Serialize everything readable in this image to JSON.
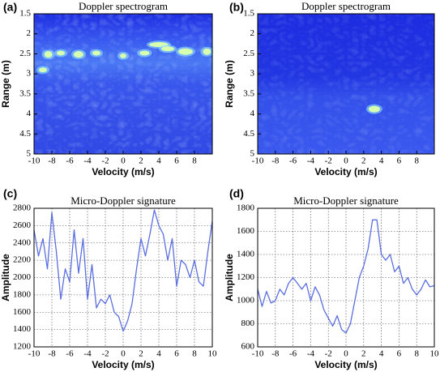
{
  "chart_data": [
    {
      "type": "spectrogram",
      "label": "(a)",
      "title": "Doppler spectrogram",
      "xlabel": "Velocity (m/s)",
      "ylabel": "Range (m)",
      "xlim": [
        -10,
        10
      ],
      "xticks": [
        -10,
        -8,
        -6,
        -4,
        -2,
        0,
        2,
        4,
        6,
        8
      ],
      "ylim": [
        5,
        1.5
      ],
      "yticks": [
        1.5,
        2,
        2.5,
        3,
        3.5,
        4,
        4.5,
        5
      ]
    },
    {
      "type": "spectrogram",
      "label": "(b)",
      "title": "Doppler spectrogram",
      "xlabel": "Velocity (m/s)",
      "ylabel": "Range (m)",
      "xlim": [
        -10,
        10
      ],
      "xticks": [
        -10,
        -8,
        -6,
        -4,
        -2,
        0,
        2,
        4,
        6,
        8
      ],
      "ylim": [
        5,
        1.5
      ],
      "yticks": [
        1.5,
        2,
        2.5,
        3,
        3.5,
        4,
        4.5,
        5
      ]
    },
    {
      "type": "line",
      "label": "(c)",
      "title": "Micro-Doppler signature",
      "xlabel": "Velocity (m/s)",
      "ylabel": "Amplitude",
      "xlim": [
        -10,
        10
      ],
      "xticks": [
        -10,
        -8,
        -6,
        -4,
        -2,
        0,
        2,
        4,
        6,
        8,
        10
      ],
      "ylim": [
        1200,
        2800
      ],
      "yticks": [
        1200,
        1400,
        1600,
        1800,
        2000,
        2200,
        2400,
        2600,
        2800
      ],
      "grid": true,
      "color": "#5b6fe0",
      "x": [
        -10,
        -9.5,
        -9,
        -8.5,
        -8,
        -7.5,
        -7,
        -6.5,
        -6,
        -5.5,
        -5,
        -4.5,
        -4,
        -3.5,
        -3,
        -2.5,
        -2,
        -1.5,
        -1,
        -0.5,
        0,
        0.5,
        1,
        1.5,
        2,
        2.5,
        3,
        3.5,
        4,
        4.5,
        5,
        5.5,
        6,
        6.5,
        7,
        7.5,
        8,
        8.5,
        9,
        9.5,
        10
      ],
      "values": [
        2550,
        2250,
        2450,
        2100,
        2750,
        2300,
        1750,
        2100,
        1950,
        2550,
        2050,
        2450,
        1750,
        2150,
        1650,
        1750,
        1700,
        1800,
        1600,
        1550,
        1380,
        1500,
        1700,
        2100,
        2450,
        2250,
        2500,
        2780,
        2600,
        2500,
        2200,
        2450,
        1900,
        2200,
        2150,
        2000,
        2200,
        1950,
        1900,
        2300,
        2650
      ]
    },
    {
      "type": "line",
      "label": "(d)",
      "title": "Micro-Doppler signature",
      "xlabel": "Velocity (m/s)",
      "ylabel": "Amplitude",
      "xlim": [
        -10,
        10
      ],
      "xticks": [
        -10,
        -8,
        -6,
        -4,
        -2,
        0,
        2,
        4,
        6,
        8,
        10
      ],
      "ylim": [
        600,
        1800
      ],
      "yticks": [
        600,
        800,
        1000,
        1200,
        1400,
        1600,
        1800
      ],
      "grid": true,
      "color": "#5b6fe0",
      "x": [
        -10,
        -9.5,
        -9,
        -8.5,
        -8,
        -7.5,
        -7,
        -6.5,
        -6,
        -5.5,
        -5,
        -4.5,
        -4,
        -3.5,
        -3,
        -2.5,
        -2,
        -1.5,
        -1,
        -0.5,
        0,
        0.5,
        1,
        1.5,
        2,
        2.5,
        3,
        3.5,
        4,
        4.5,
        5,
        5.5,
        6,
        6.5,
        7,
        7.5,
        8,
        8.5,
        9,
        9.5,
        10
      ],
      "values": [
        1100,
        950,
        1080,
        980,
        1000,
        1100,
        1050,
        1150,
        1200,
        1150,
        1100,
        1150,
        1000,
        1120,
        1050,
        920,
        850,
        780,
        870,
        750,
        720,
        800,
        1000,
        1200,
        1300,
        1450,
        1700,
        1700,
        1400,
        1350,
        1400,
        1250,
        1300,
        1150,
        1200,
        1100,
        1050,
        1100,
        1180,
        1120,
        1130
      ]
    }
  ]
}
